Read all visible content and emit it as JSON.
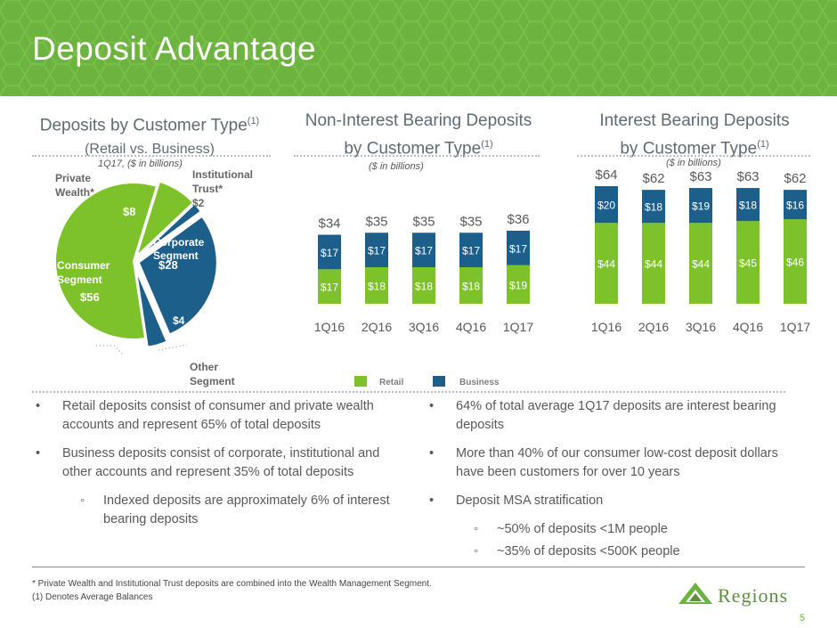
{
  "banner": {
    "title": "Deposit Advantage"
  },
  "left_section": {
    "title": "Deposits by Customer Type",
    "title_sup": "(1)",
    "subtitle": "(Retail vs. Business)",
    "note": "1Q17, ($ in billions)"
  },
  "middle_section": {
    "title_line1": "Non-Interest Bearing Deposits",
    "title_line2": "by Customer Type",
    "title_sup": "(1)",
    "note": "($ in billions)"
  },
  "right_section": {
    "title_line1": "Interest Bearing Deposits",
    "title_line2": "by Customer Type",
    "title_sup": "(1)",
    "note": "($ in billions)"
  },
  "colors": {
    "retail": "#7dc22a",
    "business": "#1b5f8a",
    "banner": "#6cb33f",
    "text": "#5f6b73"
  },
  "chart_data": [
    {
      "type": "pie",
      "slices": [
        {
          "name": "Consumer Segment",
          "label_lines": [
            "Consumer",
            "Segment"
          ],
          "value_label": "$56",
          "value": 56,
          "group": "retail"
        },
        {
          "name": "Private Wealth*",
          "label_lines": [
            "Private",
            "Wealth*"
          ],
          "value_label": "$8",
          "value": 8,
          "group": "retail"
        },
        {
          "name": "Institutional Trust*",
          "label_lines": [
            "Institutional",
            "Trust*",
            "$2"
          ],
          "value_label": "$2",
          "value": 2,
          "group": "business"
        },
        {
          "name": "Corporate Segment",
          "label_lines": [
            "Corporate",
            "Segment"
          ],
          "value_label": "$28",
          "value": 28,
          "group": "business"
        },
        {
          "name": "Other Segment",
          "label_lines": [
            "Other",
            "Segment"
          ],
          "value_label": "$4",
          "value": 4,
          "group": "business"
        }
      ]
    },
    {
      "type": "bar",
      "stacked": true,
      "categories": [
        "1Q16",
        "2Q16",
        "3Q16",
        "4Q16",
        "1Q17"
      ],
      "totals": [
        "$34",
        "$35",
        "$35",
        "$35",
        "$36"
      ],
      "series": [
        {
          "name": "Retail",
          "values": [
            17,
            18,
            18,
            18,
            19
          ],
          "labels": [
            "$17",
            "$18",
            "$18",
            "$18",
            "$19"
          ]
        },
        {
          "name": "Business",
          "values": [
            17,
            17,
            17,
            17,
            17
          ],
          "labels": [
            "$17",
            "$17",
            "$17",
            "$17",
            "$17"
          ]
        }
      ]
    },
    {
      "type": "bar",
      "stacked": true,
      "categories": [
        "1Q16",
        "2Q16",
        "3Q16",
        "4Q16",
        "1Q17"
      ],
      "totals": [
        "$64",
        "$62",
        "$63",
        "$63",
        "$62"
      ],
      "series": [
        {
          "name": "Retail",
          "values": [
            44,
            44,
            44,
            45,
            46
          ],
          "labels": [
            "$44",
            "$44",
            "$44",
            "$45",
            "$46"
          ]
        },
        {
          "name": "Business",
          "values": [
            20,
            18,
            19,
            18,
            16
          ],
          "labels": [
            "$20",
            "$18",
            "$19",
            "$18",
            "$16"
          ]
        }
      ]
    }
  ],
  "legend": {
    "retail": "Retail",
    "business": "Business"
  },
  "bullets_left": [
    {
      "level": 1,
      "text": "Retail deposits consist of consumer and private wealth accounts and represent 65% of total deposits"
    },
    {
      "level": 1,
      "text": "Business deposits consist of corporate, institutional and other accounts and represent 35% of total deposits"
    },
    {
      "level": 2,
      "text": "Indexed deposits are approximately 6% of interest bearing deposits"
    }
  ],
  "bullets_right": [
    {
      "level": 1,
      "text": "64% of total average 1Q17 deposits are interest bearing deposits"
    },
    {
      "level": 1,
      "text": "More than 40% of our consumer low-cost deposit dollars have been customers for over 10 years"
    },
    {
      "level": 1,
      "text": "Deposit MSA stratification"
    },
    {
      "level": 2,
      "text": "~50% of deposits <1M people"
    },
    {
      "level": 2,
      "text": "~35% of deposits <500K people"
    }
  ],
  "footnotes": [
    "*    Private Wealth and Institutional Trust deposits are combined into the Wealth Management Segment.",
    "(1)   Denotes Average Balances"
  ],
  "logo": {
    "text": "Regions"
  },
  "page": {
    "number": "5"
  }
}
